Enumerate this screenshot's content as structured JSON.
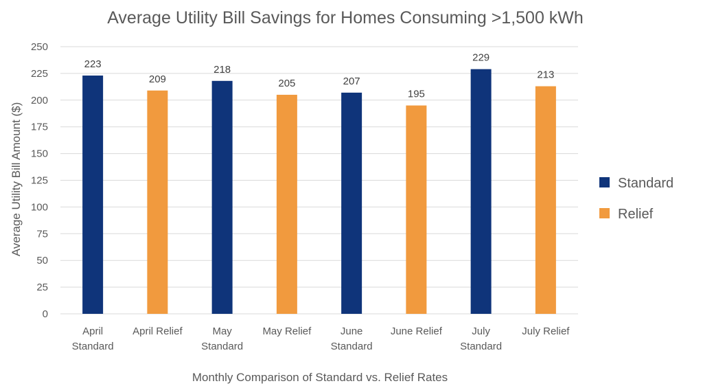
{
  "chart_data": {
    "type": "bar",
    "title": "Average Utility Bill Savings for Homes Consuming >1,500 kWh",
    "xlabel": "Monthly Comparison of Standard vs. Relief Rates",
    "ylabel": "Average Utility Bill Amount ($)",
    "ylim": [
      0,
      250
    ],
    "ytick_step": 25,
    "grid": true,
    "legend_position": "right",
    "categories": [
      [
        "April",
        "Standard"
      ],
      [
        "April Relief"
      ],
      [
        "May",
        "Standard"
      ],
      [
        "May Relief"
      ],
      [
        "June",
        "Standard"
      ],
      [
        "June Relief"
      ],
      [
        "July",
        "Standard"
      ],
      [
        "July Relief"
      ]
    ],
    "values": [
      223,
      209,
      218,
      205,
      207,
      195,
      229,
      213
    ],
    "bar_series": [
      "Standard",
      "Relief",
      "Standard",
      "Relief",
      "Standard",
      "Relief",
      "Standard",
      "Relief"
    ],
    "series": [
      {
        "name": "Standard",
        "color": "#0f347a"
      },
      {
        "name": "Relief",
        "color": "#f19a3e"
      }
    ]
  }
}
